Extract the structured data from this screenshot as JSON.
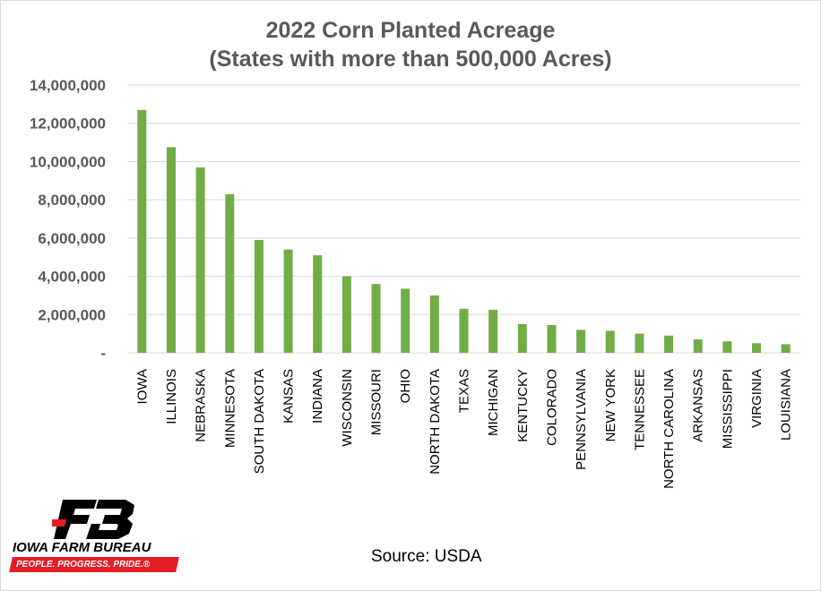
{
  "chart_data": {
    "type": "bar",
    "title_line1": "2022 Corn Planted Acreage",
    "title_line2": "(States with more than 500,000 Acres)",
    "xlabel": "",
    "ylabel": "",
    "ylim": [
      0,
      14000000
    ],
    "yticks": [
      0,
      2000000,
      4000000,
      6000000,
      8000000,
      10000000,
      12000000,
      14000000
    ],
    "ytick_labels": [
      "-",
      "2,000,000",
      "4,000,000",
      "6,000,000",
      "8,000,000",
      "10,000,000",
      "12,000,000",
      "14,000,000"
    ],
    "grid": true,
    "bar_color": "#70ad47",
    "categories": [
      "IOWA",
      "ILLINOIS",
      "NEBRASKA",
      "MINNESOTA",
      "SOUTH DAKOTA",
      "KANSAS",
      "INDIANA",
      "WISCONSIN",
      "MISSOURI",
      "OHIO",
      "NORTH DAKOTA",
      "TEXAS",
      "MICHIGAN",
      "KENTUCKY",
      "COLORADO",
      "PENNSYLVANIA",
      "NEW YORK",
      "TENNESSEE",
      "NORTH CAROLINA",
      "ARKANSAS",
      "MISSISSIPPI",
      "VIRGINIA",
      "LOUISIANA"
    ],
    "values": [
      12700000,
      10750000,
      9700000,
      8300000,
      5900000,
      5400000,
      5100000,
      4000000,
      3600000,
      3350000,
      3000000,
      2300000,
      2250000,
      1500000,
      1450000,
      1200000,
      1150000,
      1000000,
      900000,
      700000,
      600000,
      500000,
      450000
    ]
  },
  "source_note": "Source: USDA",
  "logo": {
    "wordmark": "IOWA FARM BUREAU",
    "tagline": "PEOPLE. PROGRESS. PRIDE.®",
    "mark_text": "FB",
    "brand_red": "#e31e24"
  }
}
